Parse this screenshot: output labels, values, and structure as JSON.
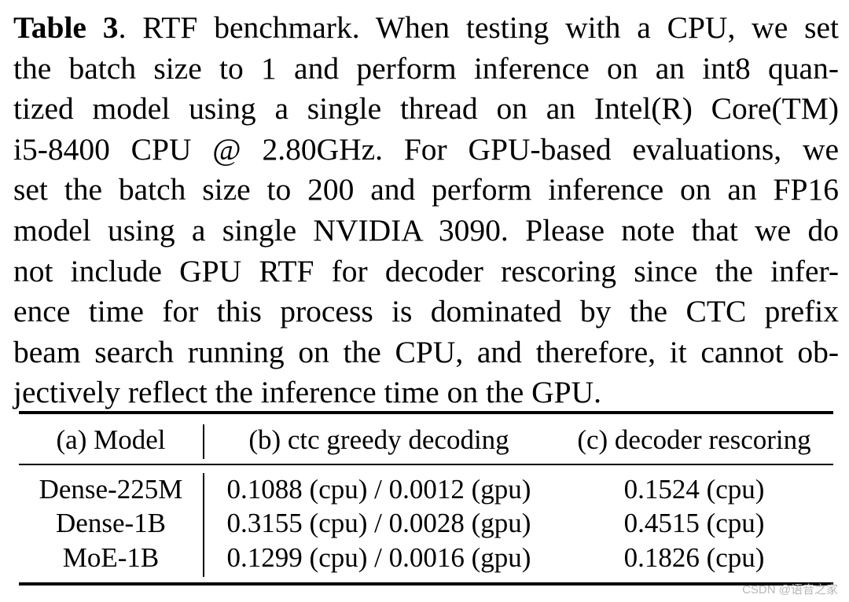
{
  "caption": {
    "label": "Table 3",
    "lines": [
      ". RTF benchmark. When testing with a CPU, we set",
      "the batch size to 1 and perform inference on an int8 quan-",
      "tized model using a single thread on an Intel(R) Core(TM)",
      "i5-8400 CPU @ 2.80GHz. For GPU-based evaluations, we",
      "set the batch size to 200 and perform inference on an FP16",
      "model using a single NVIDIA 3090. Please note that we do",
      "not include GPU RTF for decoder rescoring since the infer-",
      "ence time for this process is dominated by the CTC prefix",
      "beam search running on the CPU, and therefore, it cannot ob-",
      "jectively reflect the inference time on the GPU."
    ]
  },
  "table": {
    "headers": [
      "(a) Model",
      "(b) ctc greedy decoding",
      "(c) decoder rescoring"
    ],
    "rows": [
      [
        "Dense-225M",
        "0.1088 (cpu) / 0.0012 (gpu)",
        "0.1524 (cpu)"
      ],
      [
        "Dense-1B",
        "0.3155 (cpu) / 0.0028 (gpu)",
        "0.4515 (cpu)"
      ],
      [
        "MoE-1B",
        "0.1299 (cpu) / 0.0016 (gpu)",
        "0.1826 (cpu)"
      ]
    ]
  },
  "watermark": "CSDN @语音之家"
}
